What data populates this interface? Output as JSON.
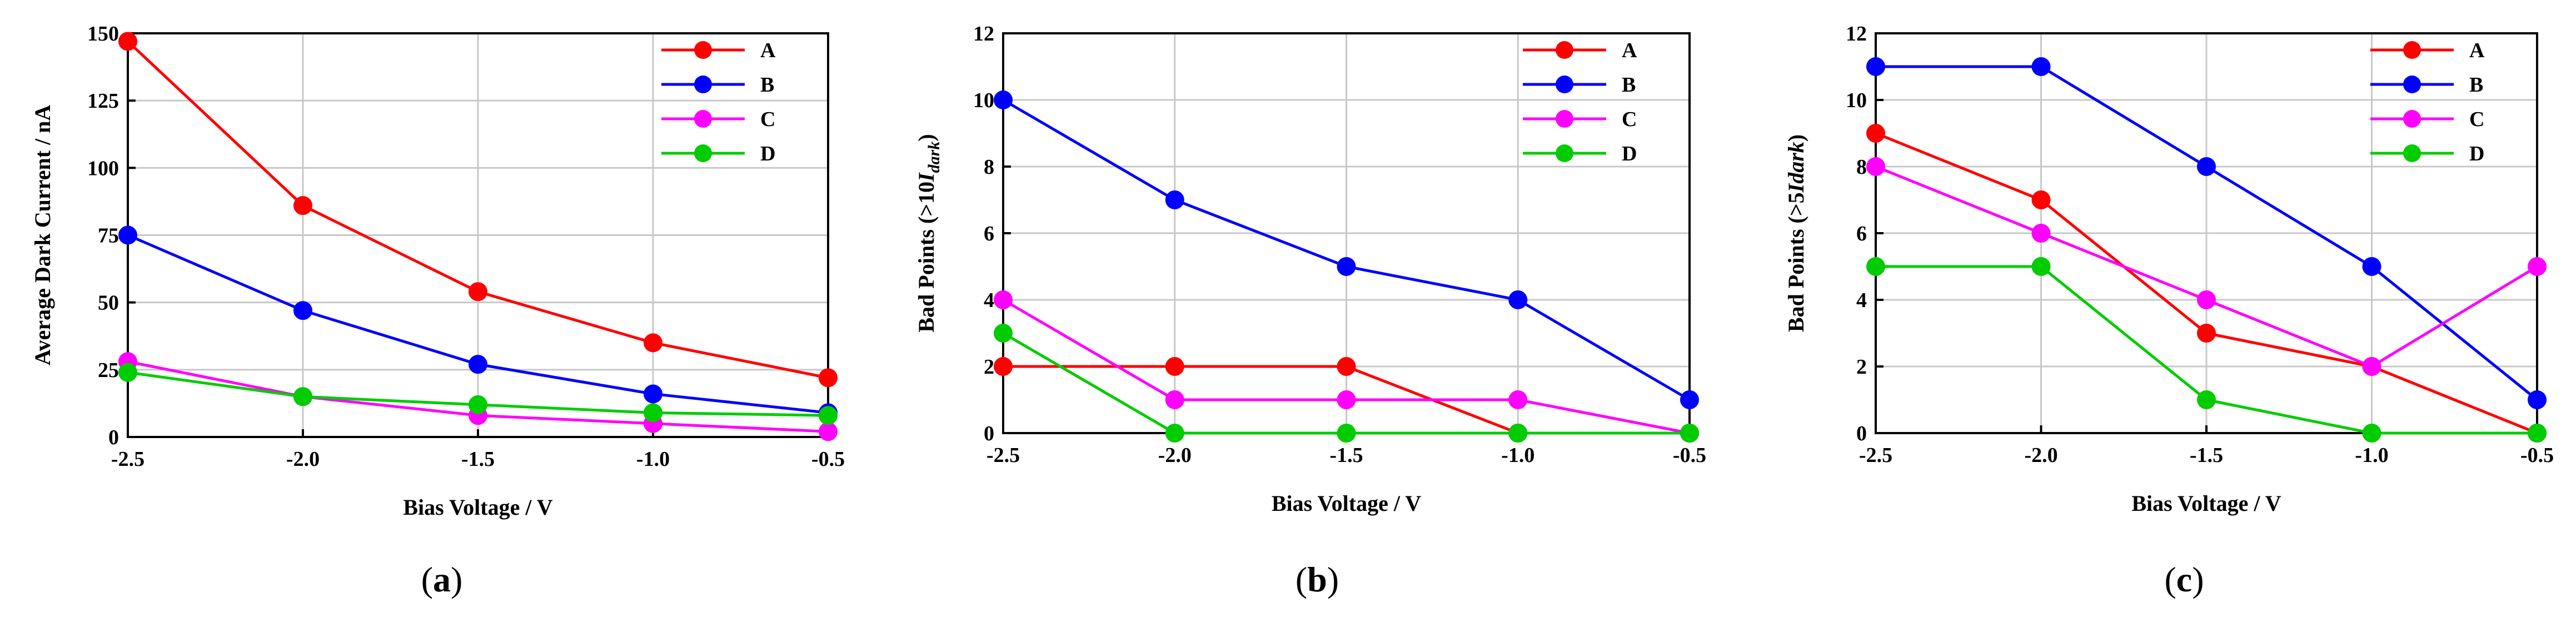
{
  "chart_data": [
    {
      "type": "line",
      "panel_label": "a",
      "xlabel": "Bias Voltage / V",
      "ylabel": "Average Dark Current / nA",
      "ylabel_parts": [
        {
          "text": "Average Dark Current / nA",
          "style": "normal"
        }
      ],
      "x": [
        -2.5,
        -2.0,
        -1.5,
        -1.0,
        -0.5
      ],
      "xlim": [
        -2.5,
        -0.5
      ],
      "ylim": [
        0,
        150
      ],
      "xticks": [
        -2.5,
        -2.0,
        -1.5,
        -1.0,
        -0.5
      ],
      "xtick_labels": [
        "-2.5",
        "-2.0",
        "-1.5",
        "-1.0",
        "-0.5"
      ],
      "yticks": [
        0,
        25,
        50,
        75,
        100,
        125,
        150
      ],
      "ytick_labels": [
        "0",
        "25",
        "50",
        "75",
        "100",
        "125",
        "150"
      ],
      "grid": true,
      "legend_position": "top-right",
      "series": [
        {
          "name": "A",
          "color": "#ff0000",
          "values": [
            147,
            86,
            54,
            35,
            22
          ]
        },
        {
          "name": "B",
          "color": "#0000ff",
          "values": [
            75,
            47,
            27,
            16,
            9
          ]
        },
        {
          "name": "C",
          "color": "#ff00ff",
          "values": [
            28,
            15,
            8,
            5,
            2
          ]
        },
        {
          "name": "D",
          "color": "#00cc00",
          "values": [
            24,
            15,
            12,
            9,
            8
          ]
        }
      ]
    },
    {
      "type": "line",
      "panel_label": "b",
      "xlabel": "Bias Voltage / V",
      "ylabel": "Bad Points (>10Idark)",
      "ylabel_parts": [
        {
          "text": "Bad Points (>10",
          "style": "normal"
        },
        {
          "text": "I",
          "style": "italic"
        },
        {
          "text": "dark",
          "style": "sub"
        },
        {
          "text": ")",
          "style": "normal"
        }
      ],
      "x": [
        -2.5,
        -2.0,
        -1.5,
        -1.0,
        -0.5
      ],
      "xlim": [
        -2.5,
        -0.5
      ],
      "ylim": [
        0,
        12
      ],
      "xticks": [
        -2.5,
        -2.0,
        -1.5,
        -1.0,
        -0.5
      ],
      "xtick_labels": [
        "-2.5",
        "-2.0",
        "-1.5",
        "-1.0",
        "-0.5"
      ],
      "yticks": [
        0,
        2,
        4,
        6,
        8,
        10,
        12
      ],
      "ytick_labels": [
        "0",
        "2",
        "4",
        "6",
        "8",
        "10",
        "12"
      ],
      "grid": true,
      "legend_position": "top-right",
      "series": [
        {
          "name": "A",
          "color": "#ff0000",
          "values": [
            2,
            2,
            2,
            0,
            0
          ]
        },
        {
          "name": "B",
          "color": "#0000ff",
          "values": [
            10,
            7,
            5,
            4,
            1
          ]
        },
        {
          "name": "C",
          "color": "#ff00ff",
          "values": [
            4,
            1,
            1,
            1,
            0
          ]
        },
        {
          "name": "D",
          "color": "#00cc00",
          "values": [
            3,
            0,
            0,
            0,
            0
          ]
        }
      ]
    },
    {
      "type": "line",
      "panel_label": "c",
      "xlabel": "Bias Voltage / V",
      "ylabel": "Bad Points (>5Idark)",
      "ylabel_parts": [
        {
          "text": "Bad Points (>5",
          "style": "normal"
        },
        {
          "text": "Idark",
          "style": "italic"
        },
        {
          "text": ")",
          "style": "normal"
        }
      ],
      "x": [
        -2.5,
        -2.0,
        -1.5,
        -1.0,
        -0.5
      ],
      "xlim": [
        -2.5,
        -0.5
      ],
      "ylim": [
        0,
        12
      ],
      "xticks": [
        -2.5,
        -2.0,
        -1.5,
        -1.0,
        -0.5
      ],
      "xtick_labels": [
        "-2.5",
        "-2.0",
        "-1.5",
        "-1.0",
        "-0.5"
      ],
      "yticks": [
        0,
        2,
        4,
        6,
        8,
        10,
        12
      ],
      "ytick_labels": [
        "0",
        "2",
        "4",
        "6",
        "8",
        "10",
        "12"
      ],
      "grid": true,
      "legend_position": "top-right",
      "series": [
        {
          "name": "A",
          "color": "#ff0000",
          "values": [
            9,
            7,
            3,
            2,
            0
          ]
        },
        {
          "name": "B",
          "color": "#0000ff",
          "values": [
            11,
            11,
            8,
            5,
            1
          ]
        },
        {
          "name": "C",
          "color": "#ff00ff",
          "values": [
            8,
            6,
            4,
            2,
            5
          ]
        },
        {
          "name": "D",
          "color": "#00cc00",
          "values": [
            5,
            5,
            1,
            0,
            0
          ]
        }
      ]
    }
  ],
  "captions": [
    "(a)",
    "(b)",
    "(c)"
  ]
}
